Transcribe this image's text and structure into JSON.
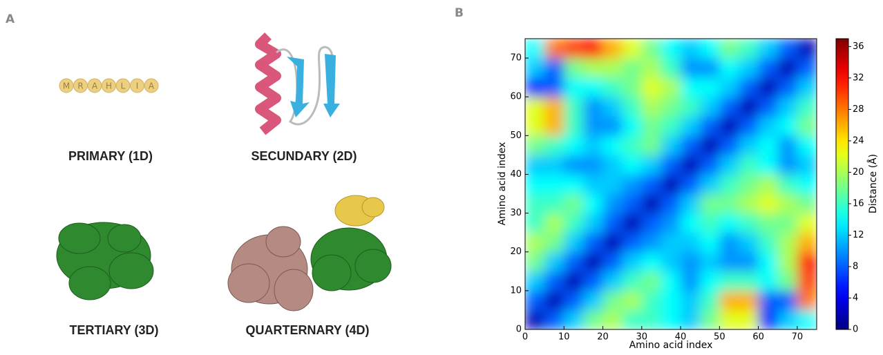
{
  "panel_a": {
    "label": "A",
    "primary_sequence": [
      "M",
      "R",
      "A",
      "H",
      "L",
      "I",
      "A"
    ],
    "captions": [
      "PRIMARY (1D)",
      "SECUNDARY (2D)",
      "TERTIARY (3D)",
      "QUARTERNARY (4D)"
    ]
  },
  "panel_b": {
    "label": "B"
  },
  "chart_data": {
    "type": "heatmap",
    "x_label": "Amino acid index",
    "y_label": "Amino acid index",
    "colorbar_label": "Distance (Å)",
    "colormap": "jet",
    "xlim": [
      0,
      75
    ],
    "ylim": [
      0,
      75
    ],
    "xticks": [
      0,
      10,
      20,
      30,
      40,
      50,
      60,
      70
    ],
    "yticks": [
      0,
      10,
      20,
      30,
      40,
      50,
      60,
      70
    ],
    "clim": [
      0,
      37
    ],
    "cticks": [
      0,
      4,
      8,
      12,
      16,
      20,
      24,
      28,
      32,
      36
    ],
    "values": [
      [
        2,
        8,
        12,
        18,
        20,
        16,
        16,
        14,
        12,
        18,
        22,
        22,
        6,
        12,
        14
      ],
      [
        8,
        2,
        8,
        12,
        18,
        20,
        16,
        14,
        12,
        16,
        26,
        26,
        8,
        8,
        28
      ],
      [
        12,
        8,
        2,
        8,
        12,
        16,
        18,
        14,
        10,
        14,
        16,
        16,
        14,
        18,
        30
      ],
      [
        18,
        12,
        8,
        2,
        8,
        12,
        14,
        12,
        10,
        12,
        10,
        10,
        14,
        20,
        32
      ],
      [
        20,
        18,
        12,
        8,
        2,
        8,
        10,
        12,
        12,
        14,
        10,
        12,
        16,
        20,
        26
      ],
      [
        16,
        20,
        16,
        12,
        8,
        2,
        8,
        10,
        14,
        16,
        14,
        16,
        18,
        18,
        22
      ],
      [
        16,
        16,
        18,
        14,
        10,
        8,
        2,
        8,
        12,
        18,
        18,
        20,
        22,
        20,
        18
      ],
      [
        14,
        14,
        14,
        12,
        12,
        10,
        8,
        2,
        8,
        12,
        16,
        18,
        20,
        16,
        14
      ],
      [
        12,
        12,
        10,
        10,
        12,
        14,
        12,
        8,
        2,
        8,
        12,
        16,
        14,
        10,
        12
      ],
      [
        18,
        16,
        14,
        12,
        14,
        16,
        18,
        12,
        8,
        2,
        8,
        12,
        14,
        10,
        14
      ],
      [
        22,
        26,
        16,
        10,
        10,
        14,
        18,
        16,
        12,
        8,
        2,
        8,
        12,
        14,
        18
      ],
      [
        22,
        26,
        16,
        10,
        12,
        16,
        20,
        18,
        16,
        12,
        8,
        2,
        8,
        12,
        16
      ],
      [
        6,
        8,
        14,
        14,
        16,
        18,
        22,
        20,
        14,
        14,
        12,
        8,
        2,
        8,
        12
      ],
      [
        12,
        8,
        18,
        20,
        20,
        18,
        20,
        16,
        10,
        10,
        14,
        12,
        8,
        2,
        8
      ],
      [
        14,
        28,
        30,
        32,
        26,
        22,
        18,
        14,
        12,
        14,
        18,
        16,
        12,
        8,
        2
      ]
    ]
  }
}
